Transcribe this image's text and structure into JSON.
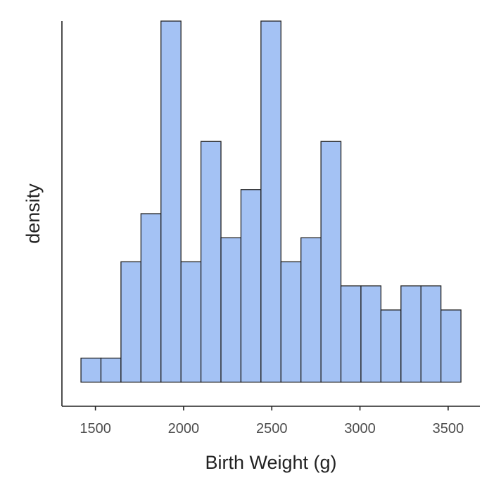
{
  "chart_data": {
    "type": "bar",
    "subtype": "histogram",
    "xlabel": "Birth Weight (g)",
    "ylabel": "density",
    "xlim": [
      1310,
      3680
    ],
    "ylim": [
      -1,
      15
    ],
    "x_ticks": [
      1500,
      2000,
      2500,
      3000,
      3500
    ],
    "x_tick_labels": [
      "1500",
      "2000",
      "2500",
      "3000",
      "3500"
    ],
    "show_y_ticks": false,
    "grid": false,
    "legend": "none",
    "bin_width": 113.4,
    "bin_start": 1418,
    "values": [
      1,
      1,
      5,
      7,
      15,
      5,
      10,
      6,
      8,
      15,
      5,
      6,
      10,
      4,
      4,
      3,
      4,
      4,
      3
    ],
    "colors": {
      "bar_fill": "#a4c2f4",
      "bar_stroke": "#222222",
      "axis": "#222222",
      "tick_label": "#4d4d4d",
      "background": "#ffffff"
    }
  }
}
